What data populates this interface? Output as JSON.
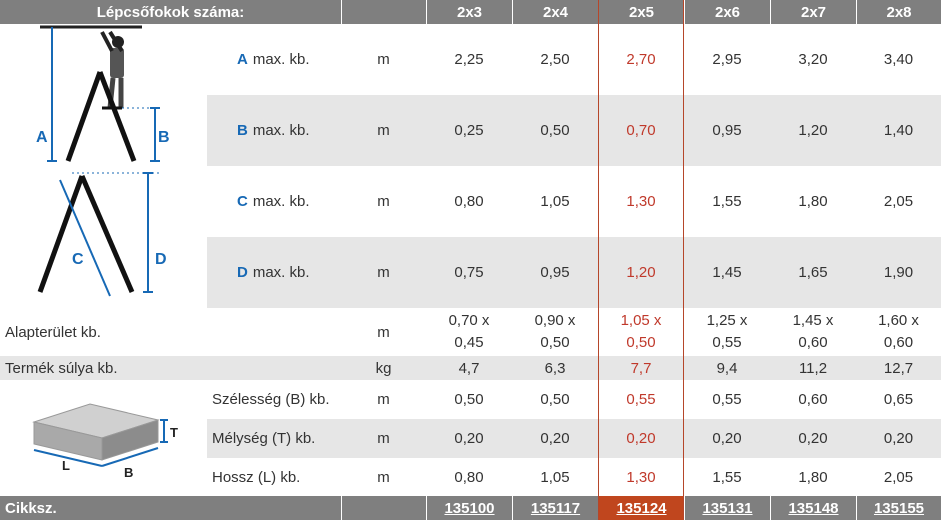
{
  "header": {
    "title": "Lépcsőfokok száma:",
    "cols": [
      "2x3",
      "2x4",
      "2x5",
      "2x6",
      "2x7",
      "2x8"
    ]
  },
  "ladder_rows": [
    {
      "letter": "A",
      "label": "max. kb.",
      "unit": "m",
      "values": [
        "2,25",
        "2,50",
        "2,70",
        "2,95",
        "3,20",
        "3,40"
      ]
    },
    {
      "letter": "B",
      "label": "max. kb.",
      "unit": "m",
      "values": [
        "0,25",
        "0,50",
        "0,70",
        "0,95",
        "1,20",
        "1,40"
      ]
    },
    {
      "letter": "C",
      "label": "max. kb.",
      "unit": "m",
      "values": [
        "0,80",
        "1,05",
        "1,30",
        "1,55",
        "1,80",
        "2,05"
      ]
    },
    {
      "letter": "D",
      "label": "max. kb.",
      "unit": "m",
      "values": [
        "0,75",
        "0,95",
        "1,20",
        "1,45",
        "1,65",
        "1,90"
      ]
    }
  ],
  "footprint": {
    "label": "Alapterület kb.",
    "unit": "m",
    "values": [
      [
        "0,70 x",
        "0,45"
      ],
      [
        "0,90 x",
        "0,50"
      ],
      [
        "1,05 x",
        "0,50"
      ],
      [
        "1,25 x",
        "0,55"
      ],
      [
        "1,45 x",
        "0,60"
      ],
      [
        "1,60 x",
        "0,60"
      ]
    ]
  },
  "weight": {
    "label": "Termék súlya kb.",
    "unit": "kg",
    "values": [
      "4,7",
      "6,3",
      "7,7",
      "9,4",
      "11,2",
      "12,7"
    ]
  },
  "package_rows": [
    {
      "label": "Szélesség (B) kb.",
      "unit": "m",
      "values": [
        "0,50",
        "0,50",
        "0,55",
        "0,55",
        "0,60",
        "0,65"
      ]
    },
    {
      "label": "Mélység (T) kb.",
      "unit": "m",
      "values": [
        "0,20",
        "0,20",
        "0,20",
        "0,20",
        "0,20",
        "0,20"
      ]
    },
    {
      "label": "Hossz (L) kb.",
      "unit": "m",
      "values": [
        "0,80",
        "1,05",
        "1,30",
        "1,55",
        "1,80",
        "2,05"
      ]
    }
  ],
  "footer": {
    "label": "Cikksz.",
    "codes": [
      "135100",
      "135117",
      "135124",
      "135131",
      "135148",
      "135155"
    ]
  },
  "diagram_labels": {
    "a": "A",
    "b": "B",
    "c": "C",
    "d": "D",
    "t": "T",
    "l": "L",
    "b2": "B"
  },
  "colors": {
    "header_bg": "#7f7f7f",
    "stripe": "#e6e6e6",
    "letter_blue": "#1769b5",
    "highlight": "#c0392b",
    "highlight_bg": "#c0461e"
  }
}
